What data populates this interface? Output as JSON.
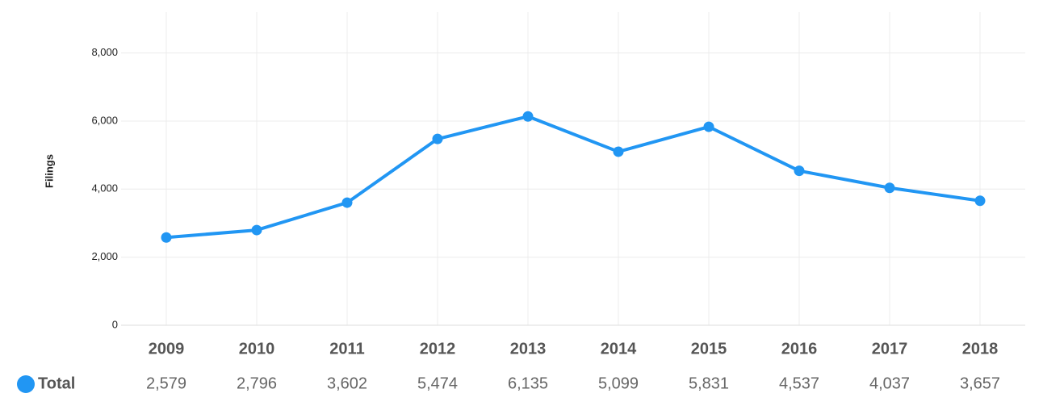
{
  "chart_data": {
    "type": "line",
    "y_label": "Filings",
    "categories": [
      "2009",
      "2010",
      "2011",
      "2012",
      "2013",
      "2014",
      "2015",
      "2016",
      "2017",
      "2018"
    ],
    "series": [
      {
        "name": "Total",
        "color": "#2196F3",
        "values": [
          2579,
          2796,
          3602,
          5474,
          6135,
          5099,
          5831,
          4537,
          4037,
          3657
        ],
        "value_labels": [
          "2,579",
          "2,796",
          "3,602",
          "5,474",
          "6,135",
          "5,099",
          "5,831",
          "4,537",
          "4,037",
          "3,657"
        ]
      }
    ],
    "ylim": [
      0,
      9200
    ],
    "yticks": [
      0,
      {
        "value": 2000,
        "label": "2,000"
      },
      {
        "value": 4000,
        "label": "4,000"
      },
      {
        "value": 6000,
        "label": "6,000"
      },
      {
        "value": 8000,
        "label": "8,000"
      }
    ],
    "grid": true
  }
}
